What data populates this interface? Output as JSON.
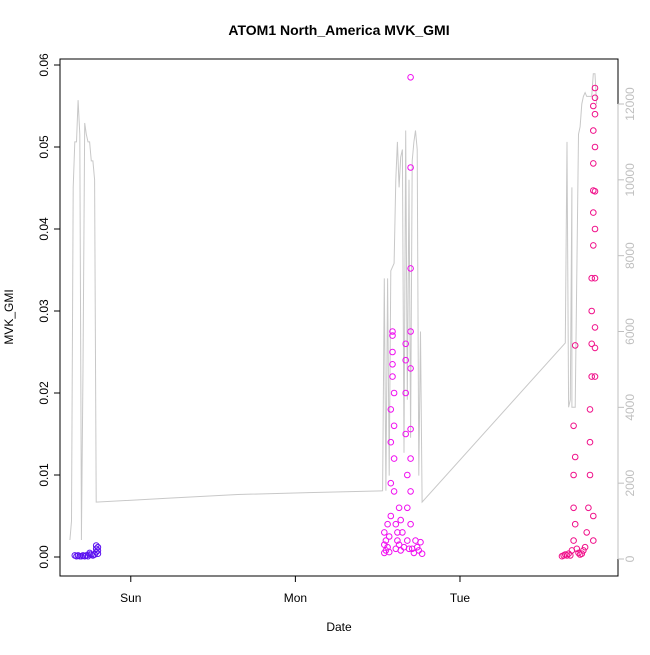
{
  "chart_data": {
    "type": "scatter",
    "title": "ATOM1 North_America MVK_GMI",
    "xlabel": "Date",
    "ylabel": "MVK_GMI",
    "x_ticks": [
      "Sun",
      "Mon",
      "Tue"
    ],
    "x_tick_days": [
      1,
      2,
      3
    ],
    "xlim_days": [
      0.57,
      3.96
    ],
    "ylim": [
      0,
      0.06
    ],
    "y_ticks": [
      0.0,
      0.01,
      0.02,
      0.03,
      0.04,
      0.05,
      0.06
    ],
    "y_tick_labels": [
      "0.00",
      "0.01",
      "0.02",
      "0.03",
      "0.04",
      "0.05",
      "0.06"
    ],
    "y2lim": [
      -500,
      13000
    ],
    "y2_ticks": [
      0,
      2000,
      4000,
      6000,
      8000,
      10000,
      12000
    ],
    "y2_tick_labels": [
      "0",
      "2000",
      "4000",
      "6000",
      "8000",
      "10000",
      "12000"
    ],
    "colors": {
      "series1": "#5B10F0",
      "series2": "#F010F0",
      "series3": "#F0108A",
      "altitude_line": "#c8c8c8",
      "axis": "#000000",
      "axis2": "#bfbfbf"
    },
    "series": [
      {
        "color": "#5B10F0",
        "points": [
          [
            0.66,
            0.0002
          ],
          [
            0.67,
            0.0001
          ],
          [
            0.68,
            0.0002
          ],
          [
            0.69,
            0.0001
          ],
          [
            0.7,
            0.0001
          ],
          [
            0.71,
            0.0002
          ],
          [
            0.72,
            0.0001
          ],
          [
            0.73,
            0.0002
          ],
          [
            0.74,
            0.0001
          ],
          [
            0.75,
            0.0003
          ],
          [
            0.75,
            0.0005
          ],
          [
            0.76,
            0.0003
          ],
          [
            0.77,
            0.0002
          ],
          [
            0.78,
            0.0003
          ],
          [
            0.79,
            0.0006
          ],
          [
            0.79,
            0.001
          ],
          [
            0.79,
            0.0014
          ],
          [
            0.8,
            0.0012
          ],
          [
            0.8,
            0.0008
          ],
          [
            0.8,
            0.0004
          ]
        ]
      },
      {
        "color": "#F010F0",
        "points": [
          [
            2.54,
            0.0005
          ],
          [
            2.54,
            0.0015
          ],
          [
            2.54,
            0.003
          ],
          [
            2.55,
            0.0008
          ],
          [
            2.55,
            0.002
          ],
          [
            2.56,
            0.004
          ],
          [
            2.56,
            0.0012
          ],
          [
            2.57,
            0.0025
          ],
          [
            2.57,
            0.0006
          ],
          [
            2.58,
            0.005
          ],
          [
            2.58,
            0.009
          ],
          [
            2.58,
            0.014
          ],
          [
            2.58,
            0.018
          ],
          [
            2.59,
            0.022
          ],
          [
            2.59,
            0.025
          ],
          [
            2.59,
            0.027
          ],
          [
            2.59,
            0.0275
          ],
          [
            2.59,
            0.0235
          ],
          [
            2.6,
            0.02
          ],
          [
            2.6,
            0.016
          ],
          [
            2.6,
            0.012
          ],
          [
            2.6,
            0.008
          ],
          [
            2.61,
            0.004
          ],
          [
            2.61,
            0.001
          ],
          [
            2.62,
            0.002
          ],
          [
            2.62,
            0.003
          ],
          [
            2.63,
            0.006
          ],
          [
            2.63,
            0.0015
          ],
          [
            2.64,
            0.0045
          ],
          [
            2.64,
            0.0008
          ],
          [
            2.65,
            0.003
          ],
          [
            2.66,
            0.0012
          ],
          [
            2.67,
            0.026
          ],
          [
            2.67,
            0.024
          ],
          [
            2.67,
            0.02
          ],
          [
            2.67,
            0.015
          ],
          [
            2.68,
            0.01
          ],
          [
            2.68,
            0.006
          ],
          [
            2.68,
            0.002
          ],
          [
            2.69,
            0.001
          ],
          [
            2.7,
            0.0585
          ],
          [
            2.7,
            0.0475
          ],
          [
            2.7,
            0.0352
          ],
          [
            2.7,
            0.0275
          ],
          [
            2.7,
            0.023
          ],
          [
            2.7,
            0.0156
          ],
          [
            2.7,
            0.012
          ],
          [
            2.7,
            0.008
          ],
          [
            2.7,
            0.004
          ],
          [
            2.71,
            0.001
          ],
          [
            2.72,
            0.0005
          ],
          [
            2.73,
            0.002
          ],
          [
            2.74,
            0.0012
          ],
          [
            2.75,
            0.0008
          ],
          [
            2.76,
            0.0018
          ],
          [
            2.77,
            0.0004
          ]
        ]
      },
      {
        "color": "#F0108A",
        "points": [
          [
            3.62,
            0.0001
          ],
          [
            3.63,
            0.0002
          ],
          [
            3.64,
            0.0003
          ],
          [
            3.65,
            0.0002
          ],
          [
            3.66,
            0.0004
          ],
          [
            3.67,
            0.0002
          ],
          [
            3.68,
            0.0008
          ],
          [
            3.69,
            0.002
          ],
          [
            3.69,
            0.006
          ],
          [
            3.69,
            0.01
          ],
          [
            3.69,
            0.016
          ],
          [
            3.7,
            0.0258
          ],
          [
            3.7,
            0.0122
          ],
          [
            3.7,
            0.004
          ],
          [
            3.71,
            0.001
          ],
          [
            3.72,
            0.0005
          ],
          [
            3.73,
            0.0003
          ],
          [
            3.74,
            0.0004
          ],
          [
            3.75,
            0.0008
          ],
          [
            3.76,
            0.0012
          ],
          [
            3.77,
            0.003
          ],
          [
            3.78,
            0.006
          ],
          [
            3.79,
            0.01
          ],
          [
            3.79,
            0.014
          ],
          [
            3.79,
            0.018
          ],
          [
            3.8,
            0.022
          ],
          [
            3.8,
            0.026
          ],
          [
            3.8,
            0.03
          ],
          [
            3.8,
            0.034
          ],
          [
            3.81,
            0.038
          ],
          [
            3.81,
            0.042
          ],
          [
            3.81,
            0.0447
          ],
          [
            3.81,
            0.048
          ],
          [
            3.81,
            0.052
          ],
          [
            3.81,
            0.055
          ],
          [
            3.82,
            0.0572
          ],
          [
            3.82,
            0.056
          ],
          [
            3.82,
            0.054
          ],
          [
            3.82,
            0.05
          ],
          [
            3.82,
            0.0446
          ],
          [
            3.82,
            0.04
          ],
          [
            3.82,
            0.034
          ],
          [
            3.82,
            0.028
          ],
          [
            3.82,
            0.0255
          ],
          [
            3.82,
            0.022
          ],
          [
            3.81,
            0.005
          ],
          [
            3.81,
            0.002
          ]
        ]
      }
    ],
    "altitude_line": [
      [
        0.63,
        500
      ],
      [
        0.64,
        1000
      ],
      [
        0.65,
        9800
      ],
      [
        0.66,
        11000
      ],
      [
        0.67,
        11000
      ],
      [
        0.68,
        12100
      ],
      [
        0.69,
        11200
      ],
      [
        0.7,
        1000
      ],
      [
        0.7,
        500
      ],
      [
        0.71,
        5000
      ],
      [
        0.72,
        11500
      ],
      [
        0.73,
        11200
      ],
      [
        0.74,
        11000
      ],
      [
        0.75,
        11000
      ],
      [
        0.76,
        10500
      ],
      [
        0.77,
        10500
      ],
      [
        0.78,
        10000
      ],
      [
        0.79,
        1500
      ],
      [
        1.22,
        1600
      ],
      [
        1.65,
        1700
      ],
      [
        2.08,
        1750
      ],
      [
        2.53,
        1800
      ],
      [
        2.54,
        7400
      ],
      [
        2.55,
        1800
      ],
      [
        2.56,
        7400
      ],
      [
        2.57,
        2200
      ],
      [
        2.58,
        7600
      ],
      [
        2.6,
        7800
      ],
      [
        2.61,
        10000
      ],
      [
        2.62,
        11000
      ],
      [
        2.63,
        9800
      ],
      [
        2.64,
        10600
      ],
      [
        2.65,
        10800
      ],
      [
        2.66,
        2800
      ],
      [
        2.67,
        11300
      ],
      [
        2.68,
        4200
      ],
      [
        2.69,
        10000
      ],
      [
        2.7,
        3200
      ],
      [
        2.71,
        10500
      ],
      [
        2.72,
        11000
      ],
      [
        2.73,
        11300
      ],
      [
        2.74,
        10800
      ],
      [
        2.75,
        2200
      ],
      [
        2.76,
        6000
      ],
      [
        2.77,
        1500
      ],
      [
        3.64,
        5700
      ],
      [
        3.65,
        11000
      ],
      [
        3.66,
        4000
      ],
      [
        3.67,
        4200
      ],
      [
        3.68,
        9800
      ],
      [
        3.68,
        4000
      ],
      [
        3.7,
        4000
      ],
      [
        3.72,
        11200
      ],
      [
        3.73,
        11400
      ],
      [
        3.74,
        12000
      ],
      [
        3.75,
        12200
      ],
      [
        3.76,
        12300
      ],
      [
        3.77,
        12200
      ],
      [
        3.8,
        12200
      ],
      [
        3.81,
        12800
      ],
      [
        3.82,
        12800
      ],
      [
        3.83,
        12000
      ]
    ]
  }
}
